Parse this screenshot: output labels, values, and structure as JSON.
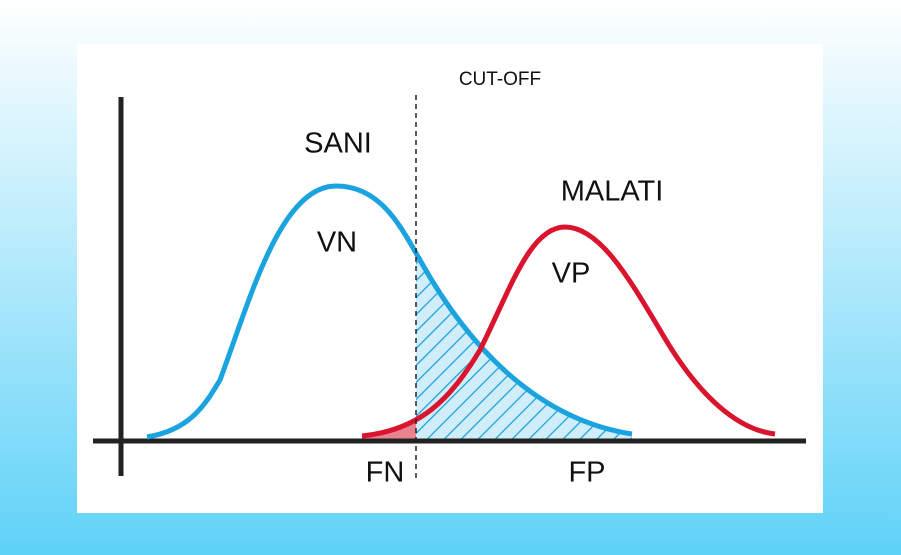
{
  "labels": {
    "cutoff": "CUT-OFF",
    "healthy": "SANI",
    "sick": "MALATI",
    "true_negative": "VN",
    "true_positive": "VP",
    "false_negative": "FN",
    "false_positive": "FP"
  }
}
